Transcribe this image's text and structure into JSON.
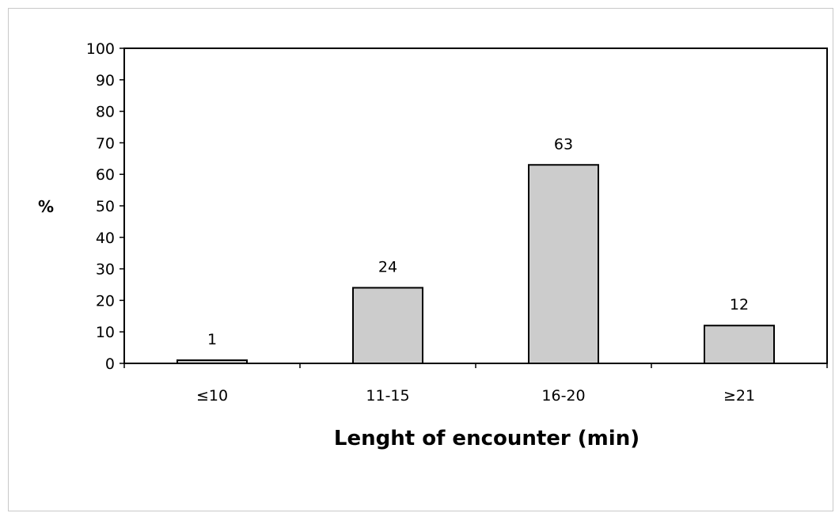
{
  "chart_data": {
    "type": "bar",
    "categories": [
      "≤10",
      "11-15",
      "16-20",
      "≥21"
    ],
    "values": [
      1,
      24,
      63,
      12
    ],
    "data_labels": [
      "1",
      "24",
      "63",
      "12"
    ],
    "xlabel": "Lenght of encounter (min)",
    "ylabel": "%",
    "ylim": [
      0,
      100
    ],
    "yticks": [
      "0",
      "10",
      "20",
      "30",
      "40",
      "50",
      "60",
      "70",
      "80",
      "90",
      "100"
    ],
    "grid": false,
    "legend": "none",
    "bar_color": "#cccccc",
    "bar_edge_color": "#000000"
  }
}
